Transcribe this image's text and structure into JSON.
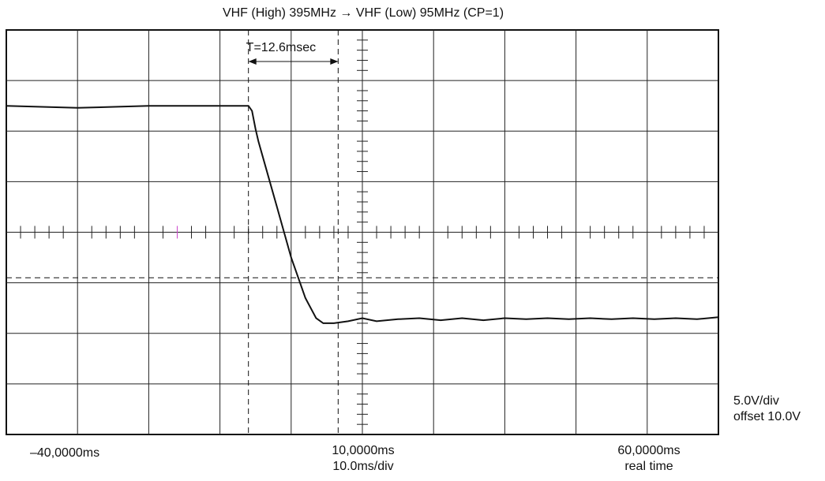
{
  "chart_data": {
    "type": "line",
    "title": "VHF (High) 395MHz → VHF (Low) 95MHz (CP=1)",
    "annotation": "T=12.6msec",
    "x_unit": "ms",
    "y_unit": "V",
    "xlim": [
      -40,
      60
    ],
    "x_time_per_div": "10.0ms/div",
    "volts_per_div": "5.0V/div",
    "offset_label": "offset 10.0V",
    "real_time_label": "real time",
    "tick_labels": {
      "left": "–40,0000ms",
      "center": "10,0000ms",
      "right": "60,0000ms"
    },
    "grid": true,
    "cursors_x_ms": [
      -6.0,
      6.6
    ],
    "cursor_y_v": -4.5,
    "series": [
      {
        "values_x": [
          -40,
          -30,
          -20,
          -10,
          -6.0,
          -5.5,
          -5.0,
          -4.6,
          -4.0,
          -2.0,
          0.0,
          1.0,
          2.0,
          3.5,
          4.5,
          6.0,
          8.0,
          10.0,
          12.0,
          15.0,
          18.0,
          21.0,
          24.0,
          27.0,
          30.0,
          33.0,
          36.0,
          39.0,
          42.0,
          45.0,
          48.0,
          51.0,
          54.0,
          57.0,
          60.0
        ],
        "values_y": [
          12.5,
          12.3,
          12.5,
          12.5,
          12.5,
          12.0,
          10.2,
          9.0,
          7.5,
          2.5,
          -2.5,
          -4.5,
          -6.5,
          -8.5,
          -9.0,
          -9.0,
          -8.8,
          -8.5,
          -8.8,
          -8.6,
          -8.5,
          -8.7,
          -8.5,
          -8.7,
          -8.5,
          -8.6,
          -8.5,
          -8.6,
          -8.5,
          -8.6,
          -8.5,
          -8.6,
          -8.5,
          -8.6,
          -8.4
        ]
      }
    ]
  }
}
